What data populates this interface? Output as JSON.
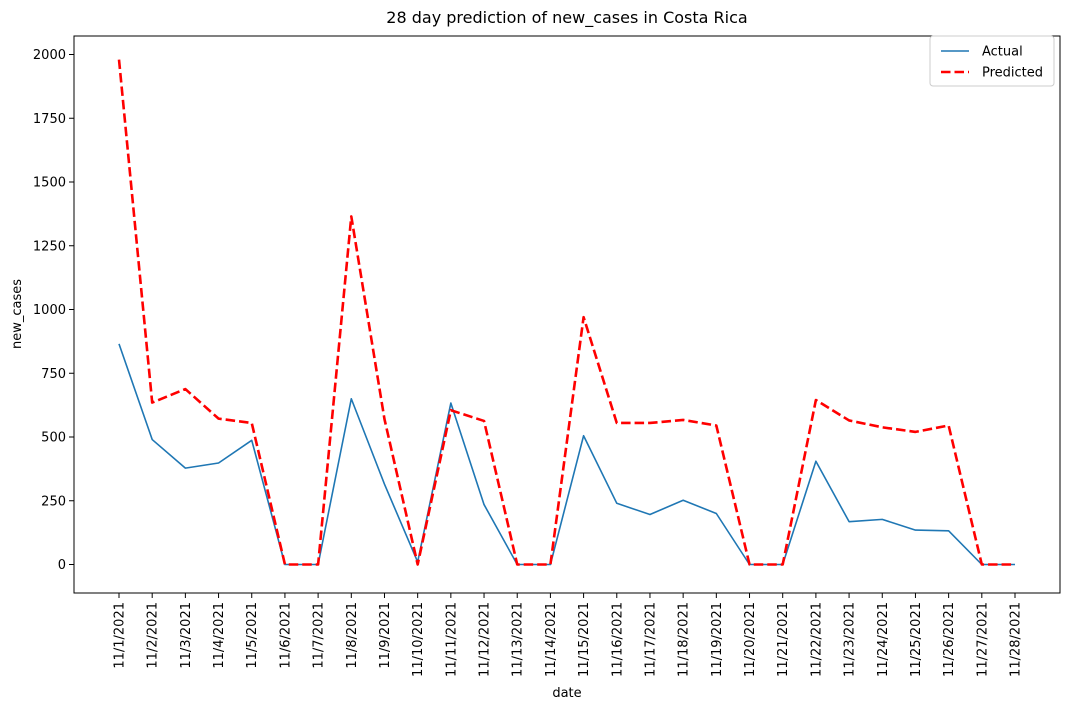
{
  "chart_data": {
    "type": "line",
    "title": "28 day prediction of new_cases in Costa Rica",
    "xlabel": "date",
    "ylabel": "new_cases",
    "categories": [
      "11/1/2021",
      "11/2/2021",
      "11/3/2021",
      "11/4/2021",
      "11/5/2021",
      "11/6/2021",
      "11/7/2021",
      "11/8/2021",
      "11/9/2021",
      "11/10/2021",
      "11/11/2021",
      "11/12/2021",
      "11/13/2021",
      "11/14/2021",
      "11/15/2021",
      "11/16/2021",
      "11/17/2021",
      "11/18/2021",
      "11/19/2021",
      "11/20/2021",
      "11/21/2021",
      "11/22/2021",
      "11/23/2021",
      "11/24/2021",
      "11/25/2021",
      "11/26/2021",
      "11/27/2021",
      "11/28/2021"
    ],
    "y_ticks": [
      0,
      250,
      500,
      750,
      1000,
      1250,
      1500,
      1750,
      2000
    ],
    "ylim": [
      -100,
      2090
    ],
    "grid": false,
    "legend_position": "top-right",
    "series": [
      {
        "name": "Actual",
        "color": "#1f77b4",
        "style": "solid",
        "values": [
          865,
          490,
          378,
          398,
          487,
          0,
          0,
          650,
          315,
          10,
          633,
          235,
          0,
          0,
          505,
          240,
          196,
          252,
          200,
          0,
          0,
          405,
          168,
          177,
          135,
          132,
          0,
          0
        ]
      },
      {
        "name": "Predicted",
        "color": "#ff0000",
        "style": "dashed",
        "values": [
          1980,
          635,
          688,
          572,
          555,
          0,
          0,
          1365,
          570,
          0,
          605,
          563,
          0,
          0,
          970,
          555,
          555,
          567,
          545,
          0,
          0,
          645,
          565,
          538,
          520,
          545,
          0,
          0
        ]
      }
    ]
  }
}
